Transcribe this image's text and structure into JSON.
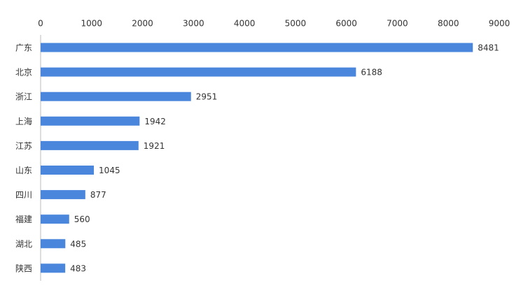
{
  "chart_data": {
    "type": "hbar",
    "categories": [
      "广东",
      "北京",
      "浙江",
      "上海",
      "江苏",
      "山东",
      "四川",
      "福建",
      "湖北",
      "陕西"
    ],
    "values": [
      8481,
      6188,
      2951,
      1942,
      1921,
      1045,
      877,
      560,
      485,
      483
    ],
    "color": "#4a86dc",
    "xlim": [
      0,
      9000
    ],
    "xticks": [
      0,
      1000,
      2000,
      3000,
      4000,
      5000,
      6000,
      7000,
      8000,
      9000
    ]
  }
}
